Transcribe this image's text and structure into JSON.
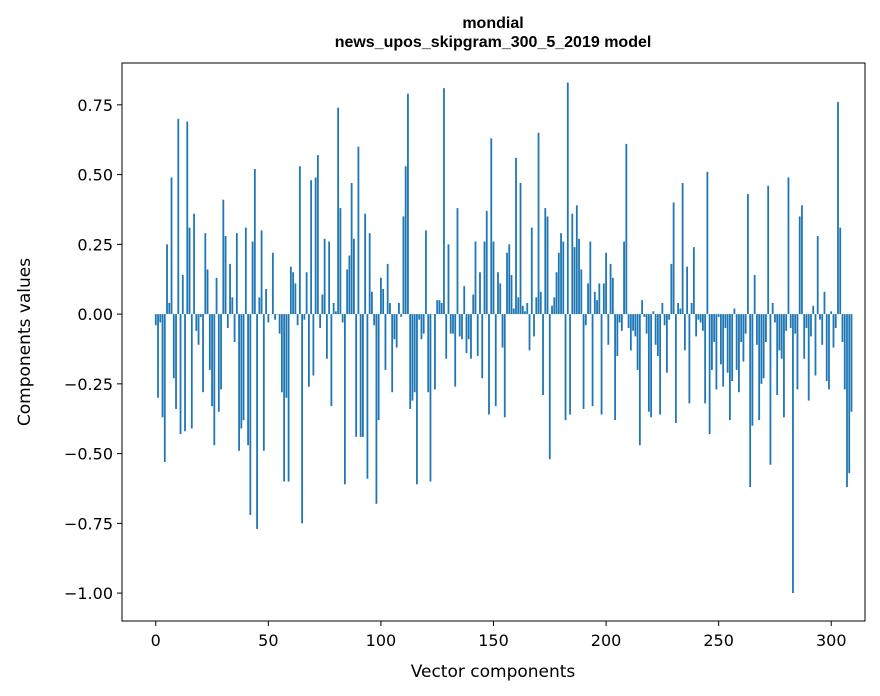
{
  "chart_data": {
    "type": "bar",
    "title": "mondial\nnews_upos_skipgram_300_5_2019 model",
    "xlabel": "Vector components",
    "ylabel": "Components values",
    "xlim": [
      -15,
      315
    ],
    "ylim": [
      -1.1,
      0.9
    ],
    "xticks": [
      0,
      50,
      100,
      150,
      200,
      250,
      300
    ],
    "yticks": [
      -1.0,
      -0.75,
      -0.5,
      -0.25,
      0.0,
      0.25,
      0.5,
      0.75
    ],
    "ytick_labels": [
      "−1.00",
      "−0.75",
      "−0.50",
      "−0.25",
      "0.00",
      "0.25",
      "0.50",
      "0.75"
    ],
    "grid": false,
    "bar_color": "#1f77b4",
    "x_start": 0,
    "values": [
      -0.04,
      -0.3,
      -0.03,
      -0.37,
      -0.53,
      0.25,
      0.04,
      0.49,
      -0.23,
      -0.34,
      0.7,
      -0.43,
      0.14,
      -0.42,
      0.69,
      0.31,
      -0.41,
      0.36,
      -0.06,
      -0.11,
      -0.01,
      -0.28,
      0.29,
      0.16,
      -0.2,
      -0.33,
      -0.47,
      0.13,
      -0.35,
      -0.27,
      0.41,
      0.28,
      -0.05,
      0.18,
      0.06,
      -0.1,
      0.29,
      -0.49,
      -0.41,
      -0.38,
      0.31,
      -0.47,
      -0.72,
      0.26,
      0.52,
      -0.77,
      0.06,
      0.3,
      -0.49,
      0.09,
      -0.03,
      0.0,
      0.22,
      -0.02,
      0.0,
      -0.07,
      -0.28,
      -0.6,
      -0.3,
      -0.6,
      0.17,
      0.15,
      0.11,
      -0.04,
      0.53,
      -0.75,
      -0.02,
      0.15,
      -0.26,
      0.48,
      -0.22,
      0.49,
      0.57,
      -0.05,
      0.07,
      0.27,
      -0.16,
      0.26,
      -0.33,
      0.04,
      0.01,
      0.74,
      0.38,
      -0.03,
      -0.61,
      0.16,
      0.21,
      0.47,
      0.27,
      -0.44,
      0.6,
      -0.44,
      -0.44,
      0.36,
      -0.59,
      0.29,
      0.08,
      -0.04,
      -0.68,
      -0.38,
      0.13,
      0.09,
      -0.2,
      0.18,
      0.04,
      -0.28,
      -0.09,
      -0.12,
      0.04,
      -0.01,
      0.35,
      0.53,
      0.79,
      -0.34,
      -0.31,
      -0.28,
      -0.61,
      -0.02,
      -0.09,
      -0.07,
      0.3,
      -0.28,
      -0.6,
      0.0,
      -0.27,
      0.05,
      0.05,
      0.04,
      0.81,
      -0.16,
      0.25,
      -0.07,
      -0.07,
      -0.26,
      0.38,
      -0.08,
      -0.09,
      0.1,
      -0.14,
      -0.09,
      -0.16,
      0.07,
      0.26,
      -0.15,
      0.15,
      -0.23,
      0.26,
      0.37,
      -0.36,
      0.63,
      0.26,
      -0.33,
      0.15,
      0.11,
      -0.12,
      -0.37,
      0.22,
      0.25,
      0.14,
      0.02,
      0.56,
      0.06,
      0.47,
      0.03,
      0.01,
      0.04,
      -0.13,
      0.31,
      -0.08,
      0.06,
      0.65,
      0.08,
      -0.29,
      0.38,
      0.35,
      -0.52,
      0.03,
      0.06,
      0.15,
      0.22,
      0.29,
      0.26,
      -0.38,
      0.83,
      -0.36,
      0.36,
      0.24,
      0.39,
      0.27,
      0.16,
      -0.34,
      -0.04,
      0.11,
      0.26,
      -0.33,
      0.08,
      0.05,
      0.11,
      -0.36,
      0.11,
      0.22,
      -0.11,
      0.18,
      0.13,
      -0.38,
      -0.15,
      -0.03,
      -0.06,
      0.26,
      0.61,
      -0.05,
      -0.13,
      -0.06,
      -0.08,
      -0.2,
      -0.47,
      0.05,
      -0.01,
      -0.07,
      -0.35,
      -0.37,
      0.01,
      -0.11,
      -0.15,
      -0.36,
      0.04,
      -0.04,
      -0.21,
      -0.02,
      0.18,
      0.4,
      -0.39,
      0.04,
      0.02,
      0.47,
      -0.13,
      0.17,
      -0.32,
      0.04,
      0.24,
      -0.08,
      -0.02,
      -0.03,
      -0.06,
      -0.32,
      0.51,
      -0.43,
      -0.2,
      -0.1,
      -0.27,
      -0.01,
      -0.18,
      -0.26,
      -0.05,
      -0.21,
      -0.38,
      -0.24,
      0.02,
      -0.2,
      -0.28,
      -0.1,
      -0.17,
      -0.07,
      0.43,
      -0.62,
      -0.4,
      0.14,
      -0.11,
      -0.38,
      -0.25,
      -0.23,
      -0.1,
      0.46,
      -0.54,
      0.04,
      -0.03,
      -0.29,
      -0.13,
      -0.16,
      -0.37,
      -0.06,
      0.49,
      -0.05,
      -1.0,
      -0.07,
      -0.27,
      0.35,
      0.39,
      -0.16,
      -0.05,
      -0.31,
      -0.08,
      0.03,
      -0.22,
      0.28,
      -0.02,
      -0.11,
      0.08,
      -0.24,
      -0.27
    ],
    "tail_values": [
      0.01,
      -0.12,
      -0.05,
      0.76,
      0.31,
      -0.1,
      -0.27,
      -0.62,
      -0.57,
      -0.35
    ]
  }
}
